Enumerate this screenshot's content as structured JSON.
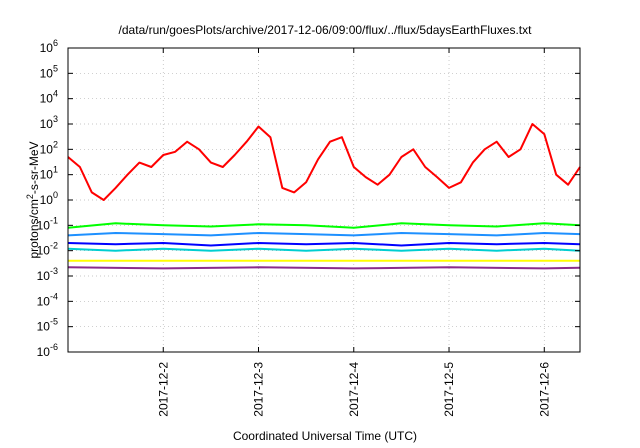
{
  "chart_data": {
    "type": "line",
    "title": "/data/run/goesPlots/archive/2017-12-06/09:00/flux/../flux/5daysEarthFluxes.txt",
    "xlabel": "Coordinated Universal Time (UTC)",
    "ylabel_prefix": "protons/cm",
    "ylabel_sup": "2",
    "ylabel_suffix": "-s-sr-MeV",
    "y_scale": "log",
    "ylim": [
      1e-06,
      1000000.0
    ],
    "y_ticks": [
      {
        "base": "10",
        "exp": "-6",
        "value": 1e-06
      },
      {
        "base": "10",
        "exp": "-5",
        "value": 1e-05
      },
      {
        "base": "10",
        "exp": "-4",
        "value": 0.0001
      },
      {
        "base": "10",
        "exp": "-3",
        "value": 0.001
      },
      {
        "base": "10",
        "exp": "-2",
        "value": 0.01
      },
      {
        "base": "10",
        "exp": "-1",
        "value": 0.1
      },
      {
        "base": "10",
        "exp": "0",
        "value": 1
      },
      {
        "base": "10",
        "exp": "1",
        "value": 10
      },
      {
        "base": "10",
        "exp": "2",
        "value": 100
      },
      {
        "base": "10",
        "exp": "3",
        "value": 1000
      },
      {
        "base": "10",
        "exp": "4",
        "value": 10000
      },
      {
        "base": "10",
        "exp": "5",
        "value": 100000
      },
      {
        "base": "10",
        "exp": "6",
        "value": 1000000
      }
    ],
    "xlim": [
      "2017-12-01T00:00",
      "2017-12-06T09:00"
    ],
    "x_ticks": [
      "2017-12-2",
      "2017-12-3",
      "2017-12-4",
      "2017-12-5",
      "2017-12-6"
    ],
    "x_tick_dates": [
      "2017-12-02",
      "2017-12-03",
      "2017-12-04",
      "2017-12-05",
      "2017-12-06"
    ],
    "grid": true,
    "series": [
      {
        "color": "#ff0000",
        "x": [
          "2017-12-01T00:00",
          "2017-12-01T03:00",
          "2017-12-01T06:00",
          "2017-12-01T09:00",
          "2017-12-01T12:00",
          "2017-12-01T15:00",
          "2017-12-01T18:00",
          "2017-12-01T21:00",
          "2017-12-02T00:00",
          "2017-12-02T03:00",
          "2017-12-02T06:00",
          "2017-12-02T09:00",
          "2017-12-02T12:00",
          "2017-12-02T15:00",
          "2017-12-02T18:00",
          "2017-12-02T21:00",
          "2017-12-03T00:00",
          "2017-12-03T03:00",
          "2017-12-03T06:00",
          "2017-12-03T09:00",
          "2017-12-03T12:00",
          "2017-12-03T15:00",
          "2017-12-03T18:00",
          "2017-12-03T21:00",
          "2017-12-04T00:00",
          "2017-12-04T03:00",
          "2017-12-04T06:00",
          "2017-12-04T09:00",
          "2017-12-04T12:00",
          "2017-12-04T15:00",
          "2017-12-04T18:00",
          "2017-12-04T21:00",
          "2017-12-05T00:00",
          "2017-12-05T03:00",
          "2017-12-05T06:00",
          "2017-12-05T09:00",
          "2017-12-05T12:00",
          "2017-12-05T15:00",
          "2017-12-05T18:00",
          "2017-12-05T21:00",
          "2017-12-06T00:00",
          "2017-12-06T03:00",
          "2017-12-06T06:00",
          "2017-12-06T09:00"
        ],
        "y": [
          50,
          20,
          2,
          1,
          3,
          10,
          30,
          20,
          60,
          80,
          200,
          100,
          30,
          20,
          60,
          200,
          800,
          300,
          3,
          2,
          5,
          40,
          200,
          300,
          20,
          8,
          4,
          10,
          50,
          100,
          20,
          8,
          3,
          5,
          30,
          100,
          200,
          50,
          100,
          1000,
          400,
          10,
          4,
          20
        ]
      },
      {
        "color": "#00ff00",
        "x": [
          "2017-12-01T00:00",
          "2017-12-01T12:00",
          "2017-12-02T00:00",
          "2017-12-02T12:00",
          "2017-12-03T00:00",
          "2017-12-03T12:00",
          "2017-12-04T00:00",
          "2017-12-04T12:00",
          "2017-12-05T00:00",
          "2017-12-05T12:00",
          "2017-12-06T00:00",
          "2017-12-06T09:00"
        ],
        "y": [
          0.08,
          0.12,
          0.1,
          0.09,
          0.11,
          0.1,
          0.08,
          0.12,
          0.1,
          0.09,
          0.12,
          0.1
        ]
      },
      {
        "color": "#1e90ff",
        "x": [
          "2017-12-01T00:00",
          "2017-12-01T12:00",
          "2017-12-02T00:00",
          "2017-12-02T12:00",
          "2017-12-03T00:00",
          "2017-12-03T12:00",
          "2017-12-04T00:00",
          "2017-12-04T12:00",
          "2017-12-05T00:00",
          "2017-12-05T12:00",
          "2017-12-06T00:00",
          "2017-12-06T09:00"
        ],
        "y": [
          0.04,
          0.05,
          0.045,
          0.04,
          0.05,
          0.045,
          0.04,
          0.05,
          0.045,
          0.04,
          0.05,
          0.045
        ]
      },
      {
        "color": "#0000ff",
        "x": [
          "2017-12-01T00:00",
          "2017-12-01T12:00",
          "2017-12-02T00:00",
          "2017-12-02T12:00",
          "2017-12-03T00:00",
          "2017-12-03T12:00",
          "2017-12-04T00:00",
          "2017-12-04T12:00",
          "2017-12-05T00:00",
          "2017-12-05T12:00",
          "2017-12-06T00:00",
          "2017-12-06T09:00"
        ],
        "y": [
          0.02,
          0.018,
          0.02,
          0.016,
          0.02,
          0.018,
          0.02,
          0.016,
          0.02,
          0.018,
          0.02,
          0.018
        ]
      },
      {
        "color": "#00ced1",
        "x": [
          "2017-12-01T00:00",
          "2017-12-01T12:00",
          "2017-12-02T00:00",
          "2017-12-02T12:00",
          "2017-12-03T00:00",
          "2017-12-03T12:00",
          "2017-12-04T00:00",
          "2017-12-04T12:00",
          "2017-12-05T00:00",
          "2017-12-05T12:00",
          "2017-12-06T00:00",
          "2017-12-06T09:00"
        ],
        "y": [
          0.012,
          0.01,
          0.012,
          0.01,
          0.012,
          0.01,
          0.012,
          0.01,
          0.012,
          0.01,
          0.012,
          0.01
        ]
      },
      {
        "color": "#ffff00",
        "x": [
          "2017-12-01T00:00",
          "2017-12-02T00:00",
          "2017-12-03T00:00",
          "2017-12-04T00:00",
          "2017-12-05T00:00",
          "2017-12-06T00:00",
          "2017-12-06T09:00"
        ],
        "y": [
          0.004,
          0.004,
          0.004,
          0.004,
          0.004,
          0.004,
          0.004
        ]
      },
      {
        "color": "#8b2c8b",
        "x": [
          "2017-12-01T00:00",
          "2017-12-02T00:00",
          "2017-12-03T00:00",
          "2017-12-04T00:00",
          "2017-12-05T00:00",
          "2017-12-06T00:00",
          "2017-12-06T09:00"
        ],
        "y": [
          0.0022,
          0.002,
          0.0022,
          0.002,
          0.0022,
          0.002,
          0.0021
        ]
      }
    ]
  }
}
